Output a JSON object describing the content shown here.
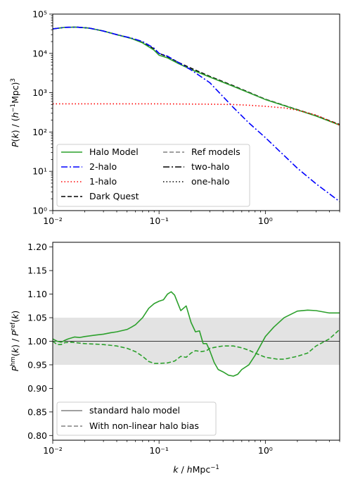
{
  "chart_data": [
    {
      "type": "line",
      "x_scale": "log",
      "y_scale": "log",
      "xlim": [
        0.01,
        5
      ],
      "ylim": [
        1,
        100000
      ],
      "ylabel": "P(k) / (h⁻¹Mpc)³",
      "x_tick_labels": [
        "10⁻²",
        "10⁻¹",
        "10⁰"
      ],
      "y_tick_labels": [
        "10⁰",
        "10¹",
        "10²",
        "10³",
        "10⁴",
        "10⁵"
      ],
      "legend": {
        "placement": "lower-left",
        "columns": 2,
        "entries": [
          "Halo Model",
          "2-halo",
          "1-halo",
          "Dark Quest",
          "Ref models",
          "two-halo",
          "one-halo"
        ]
      },
      "series": [
        {
          "name": "Dark Quest",
          "color": "#000000",
          "style": "dashed",
          "x": [
            0.01,
            0.013,
            0.017,
            0.022,
            0.03,
            0.04,
            0.055,
            0.07,
            0.09,
            0.1,
            0.12,
            0.15,
            0.2,
            0.3,
            0.5,
            1,
            2,
            3,
            5
          ],
          "y": [
            42000,
            46000,
            46500,
            44000,
            37000,
            30000,
            24000,
            19000,
            13000,
            10000,
            8200,
            6000,
            4200,
            2600,
            1500,
            680,
            370,
            260,
            155
          ]
        },
        {
          "name": "Halo Model",
          "color": "#2ca02c",
          "style": "solid",
          "x": [
            0.01,
            0.013,
            0.017,
            0.022,
            0.03,
            0.04,
            0.055,
            0.07,
            0.09,
            0.1,
            0.12,
            0.15,
            0.2,
            0.3,
            0.5,
            1,
            2,
            3,
            5
          ],
          "y": [
            42000,
            46000,
            46500,
            44000,
            37000,
            30000,
            24000,
            18500,
            12000,
            9000,
            7700,
            5600,
            3900,
            2500,
            1450,
            670,
            365,
            255,
            150
          ]
        },
        {
          "name": "2-halo",
          "color": "#0000ff",
          "style": "dashdot",
          "x": [
            0.01,
            0.013,
            0.017,
            0.022,
            0.03,
            0.04,
            0.055,
            0.07,
            0.09,
            0.1,
            0.12,
            0.15,
            0.2,
            0.3,
            0.5,
            0.7,
            1,
            2,
            3,
            5
          ],
          "y": [
            42000,
            46000,
            46500,
            44000,
            37000,
            30000,
            24500,
            20000,
            13500,
            10000,
            8500,
            6000,
            3800,
            1800,
            420,
            170,
            72,
            12,
            4.8,
            1.7
          ]
        },
        {
          "name": "1-halo",
          "color": "#ff0000",
          "style": "dotted",
          "x": [
            0.01,
            0.1,
            0.3,
            0.5,
            0.7,
            1,
            1.5,
            2,
            3,
            5
          ],
          "y": [
            520,
            520,
            510,
            500,
            480,
            450,
            410,
            360,
            270,
            150
          ]
        }
      ]
    },
    {
      "type": "line",
      "x_scale": "log",
      "xlim": [
        0.01,
        5
      ],
      "ylim": [
        0.79,
        1.21
      ],
      "xlabel": "k / hMpc⁻¹",
      "ylabel": "Pʰᵐ(k) / Pʳᵉᶠ(k)",
      "x_tick_labels": [
        "10⁻²",
        "10⁻¹",
        "10⁰"
      ],
      "y_tick_labels": [
        "0.80",
        "0.85",
        "0.90",
        "0.95",
        "1.00",
        "1.05",
        "1.10",
        "1.15",
        "1.20"
      ],
      "shaded_band": [
        0.95,
        1.05
      ],
      "reference_line": 1.0,
      "legend": {
        "placement": "lower-left",
        "entries": [
          "standard halo model",
          "With non-linear halo bias"
        ]
      },
      "series": [
        {
          "name": "standard halo model",
          "color": "#2ca02c",
          "style": "solid",
          "x": [
            0.01,
            0.011,
            0.012,
            0.013,
            0.014,
            0.016,
            0.018,
            0.02,
            0.025,
            0.03,
            0.035,
            0.04,
            0.05,
            0.055,
            0.06,
            0.07,
            0.08,
            0.09,
            0.1,
            0.11,
            0.12,
            0.13,
            0.14,
            0.16,
            0.18,
            0.2,
            0.22,
            0.24,
            0.26,
            0.28,
            0.3,
            0.33,
            0.36,
            0.4,
            0.45,
            0.5,
            0.55,
            0.6,
            0.7,
            0.8,
            1.0,
            1.2,
            1.5,
            2.0,
            2.5,
            3.0,
            4.0,
            5.0
          ],
          "y": [
            1.005,
            1.0,
            0.998,
            1.002,
            1.005,
            1.009,
            1.008,
            1.01,
            1.013,
            1.015,
            1.018,
            1.02,
            1.025,
            1.03,
            1.035,
            1.05,
            1.07,
            1.08,
            1.085,
            1.088,
            1.1,
            1.105,
            1.098,
            1.065,
            1.075,
            1.04,
            1.02,
            1.022,
            0.995,
            0.995,
            0.98,
            0.955,
            0.94,
            0.935,
            0.928,
            0.926,
            0.93,
            0.94,
            0.95,
            0.97,
            1.01,
            1.03,
            1.05,
            1.064,
            1.066,
            1.065,
            1.06,
            1.06
          ]
        },
        {
          "name": "With non-linear halo bias",
          "color": "#2ca02c",
          "style": "dashed",
          "x": [
            0.01,
            0.011,
            0.012,
            0.013,
            0.015,
            0.018,
            0.02,
            0.025,
            0.03,
            0.04,
            0.05,
            0.06,
            0.07,
            0.08,
            0.09,
            0.1,
            0.12,
            0.14,
            0.16,
            0.18,
            0.2,
            0.22,
            0.25,
            0.28,
            0.3,
            0.35,
            0.4,
            0.5,
            0.6,
            0.7,
            0.8,
            1.0,
            1.3,
            1.5,
            2.0,
            2.5,
            3.0,
            4.0,
            5.0
          ],
          "y": [
            1.0,
            0.993,
            0.993,
            0.997,
            0.998,
            0.996,
            0.995,
            0.994,
            0.993,
            0.99,
            0.985,
            0.978,
            0.968,
            0.957,
            0.953,
            0.953,
            0.954,
            0.958,
            0.968,
            0.966,
            0.975,
            0.98,
            0.978,
            0.98,
            0.985,
            0.988,
            0.99,
            0.99,
            0.986,
            0.981,
            0.975,
            0.966,
            0.962,
            0.962,
            0.968,
            0.975,
            0.99,
            1.005,
            1.025
          ]
        }
      ]
    }
  ]
}
